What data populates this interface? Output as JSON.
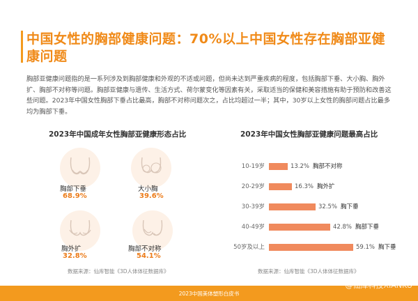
{
  "title": "中国女性的胸部健康问题：70%以上中国女性存在胸部亚健康问题",
  "paragraph": "胸部亚健康问题指的是一系列涉及到胸部健康和外观的不适或问题，但尚未达到严重疾病的程度，包括胸部下垂、大小胸、胸外扩、胸部不对称等问题。胸部亚健康与遗传、生活方式、荷尔蒙变化等因素有关，采取适当的保健和美容措施有助于预防和改善这些问题。2023年中国女性胸部下垂占比最高，胸部不对称问题次之，占比均超过一半；其中，30岁以上女性的胸部问题占比最多均为胸部下垂。",
  "left_panel": {
    "title": "2023年中国成年女性胸部亚健康形态占比",
    "items": [
      {
        "name": "胸部下垂",
        "pct": "68.9%",
        "icon": "sagging-chest-icon"
      },
      {
        "name": "大小胸",
        "pct": "39.6%",
        "icon": "uneven-size-chest-icon"
      },
      {
        "name": "胸外扩",
        "pct": "32.8%",
        "icon": "splayed-chest-icon"
      },
      {
        "name": "胸部不对称",
        "pct": "54.1%",
        "icon": "asymmetric-chest-icon"
      }
    ],
    "source": "数据来源：仙库智能《3D人体体征数据库》"
  },
  "chart_data": {
    "type": "bar",
    "title": "2023年中国女性胸部亚健康问题最高占比",
    "orientation": "horizontal",
    "categories": [
      "10-19岁",
      "20-29岁",
      "30-39岁",
      "40-49岁",
      "50岁及以上"
    ],
    "values": [
      13.2,
      16.3,
      32.5,
      42.8,
      59.1
    ],
    "value_labels": [
      "13.2%",
      "16.3%",
      "32.5%",
      "42.8%",
      "59.1%"
    ],
    "issues": [
      "胸部不对称",
      "胸外扩",
      "胸下垂",
      "胸部下垂",
      "胸下垂"
    ],
    "xlim": [
      0,
      60
    ],
    "grid": false,
    "bar_color": "#f08a5d",
    "source": "数据来源：仙库智能《3D人体体征数据库》"
  },
  "footer": {
    "text": "2023中国美体塑形白皮书",
    "watermark": "@仙库科技XIANKU"
  },
  "colors": {
    "accent": "#f39a1e",
    "title": "#f08a18",
    "pct": "#ec7c1a"
  }
}
